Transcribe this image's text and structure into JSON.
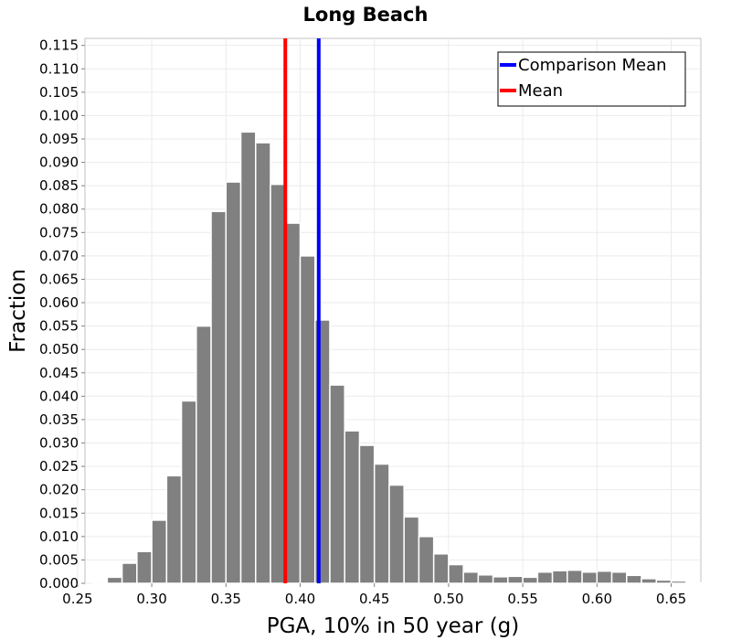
{
  "chart_data": {
    "type": "bar",
    "title": "Long Beach",
    "xlabel": "PGA, 10% in 50 year (g)",
    "ylabel": "Fraction",
    "xlim": [
      0.255,
      0.67
    ],
    "ylim": [
      0,
      0.1165
    ],
    "grid": true,
    "legend_position": "top-right",
    "x_ticks": [
      "0.25",
      "0.30",
      "0.35",
      "0.40",
      "0.45",
      "0.50",
      "0.55",
      "0.60",
      "0.65"
    ],
    "y_ticks": [
      "0.000",
      "0.005",
      "0.010",
      "0.015",
      "0.020",
      "0.025",
      "0.030",
      "0.035",
      "0.040",
      "0.045",
      "0.050",
      "0.055",
      "0.060",
      "0.065",
      "0.070",
      "0.075",
      "0.080",
      "0.085",
      "0.090",
      "0.095",
      "0.100",
      "0.105",
      "0.110",
      "0.115"
    ],
    "bin_width": 0.01,
    "bin_centers": [
      0.265,
      0.275,
      0.285,
      0.295,
      0.305,
      0.315,
      0.325,
      0.335,
      0.345,
      0.355,
      0.365,
      0.375,
      0.385,
      0.395,
      0.405,
      0.415,
      0.425,
      0.435,
      0.445,
      0.455,
      0.465,
      0.475,
      0.485,
      0.495,
      0.505,
      0.515,
      0.525,
      0.535,
      0.545,
      0.555,
      0.565,
      0.575,
      0.585,
      0.595,
      0.605,
      0.615,
      0.625,
      0.635,
      0.645,
      0.655,
      0.665
    ],
    "values": [
      0.0003,
      0.0013,
      0.0043,
      0.0068,
      0.0135,
      0.023,
      0.039,
      0.055,
      0.0795,
      0.0858,
      0.0965,
      0.0942,
      0.0853,
      0.077,
      0.07,
      0.0563,
      0.0424,
      0.0326,
      0.0295,
      0.0255,
      0.021,
      0.0142,
      0.01,
      0.0063,
      0.004,
      0.0024,
      0.0018,
      0.0014,
      0.0015,
      0.0013,
      0.0024,
      0.0027,
      0.0028,
      0.0024,
      0.0026,
      0.0024,
      0.0017,
      0.001,
      0.0007,
      0.0005,
      0.0001
    ],
    "bar_color": "#808080",
    "series": [
      {
        "name": "Comparison Mean",
        "x": 0.4125,
        "color": "#0000ff"
      },
      {
        "name": "Mean",
        "x": 0.39,
        "color": "#ff0000"
      }
    ]
  }
}
